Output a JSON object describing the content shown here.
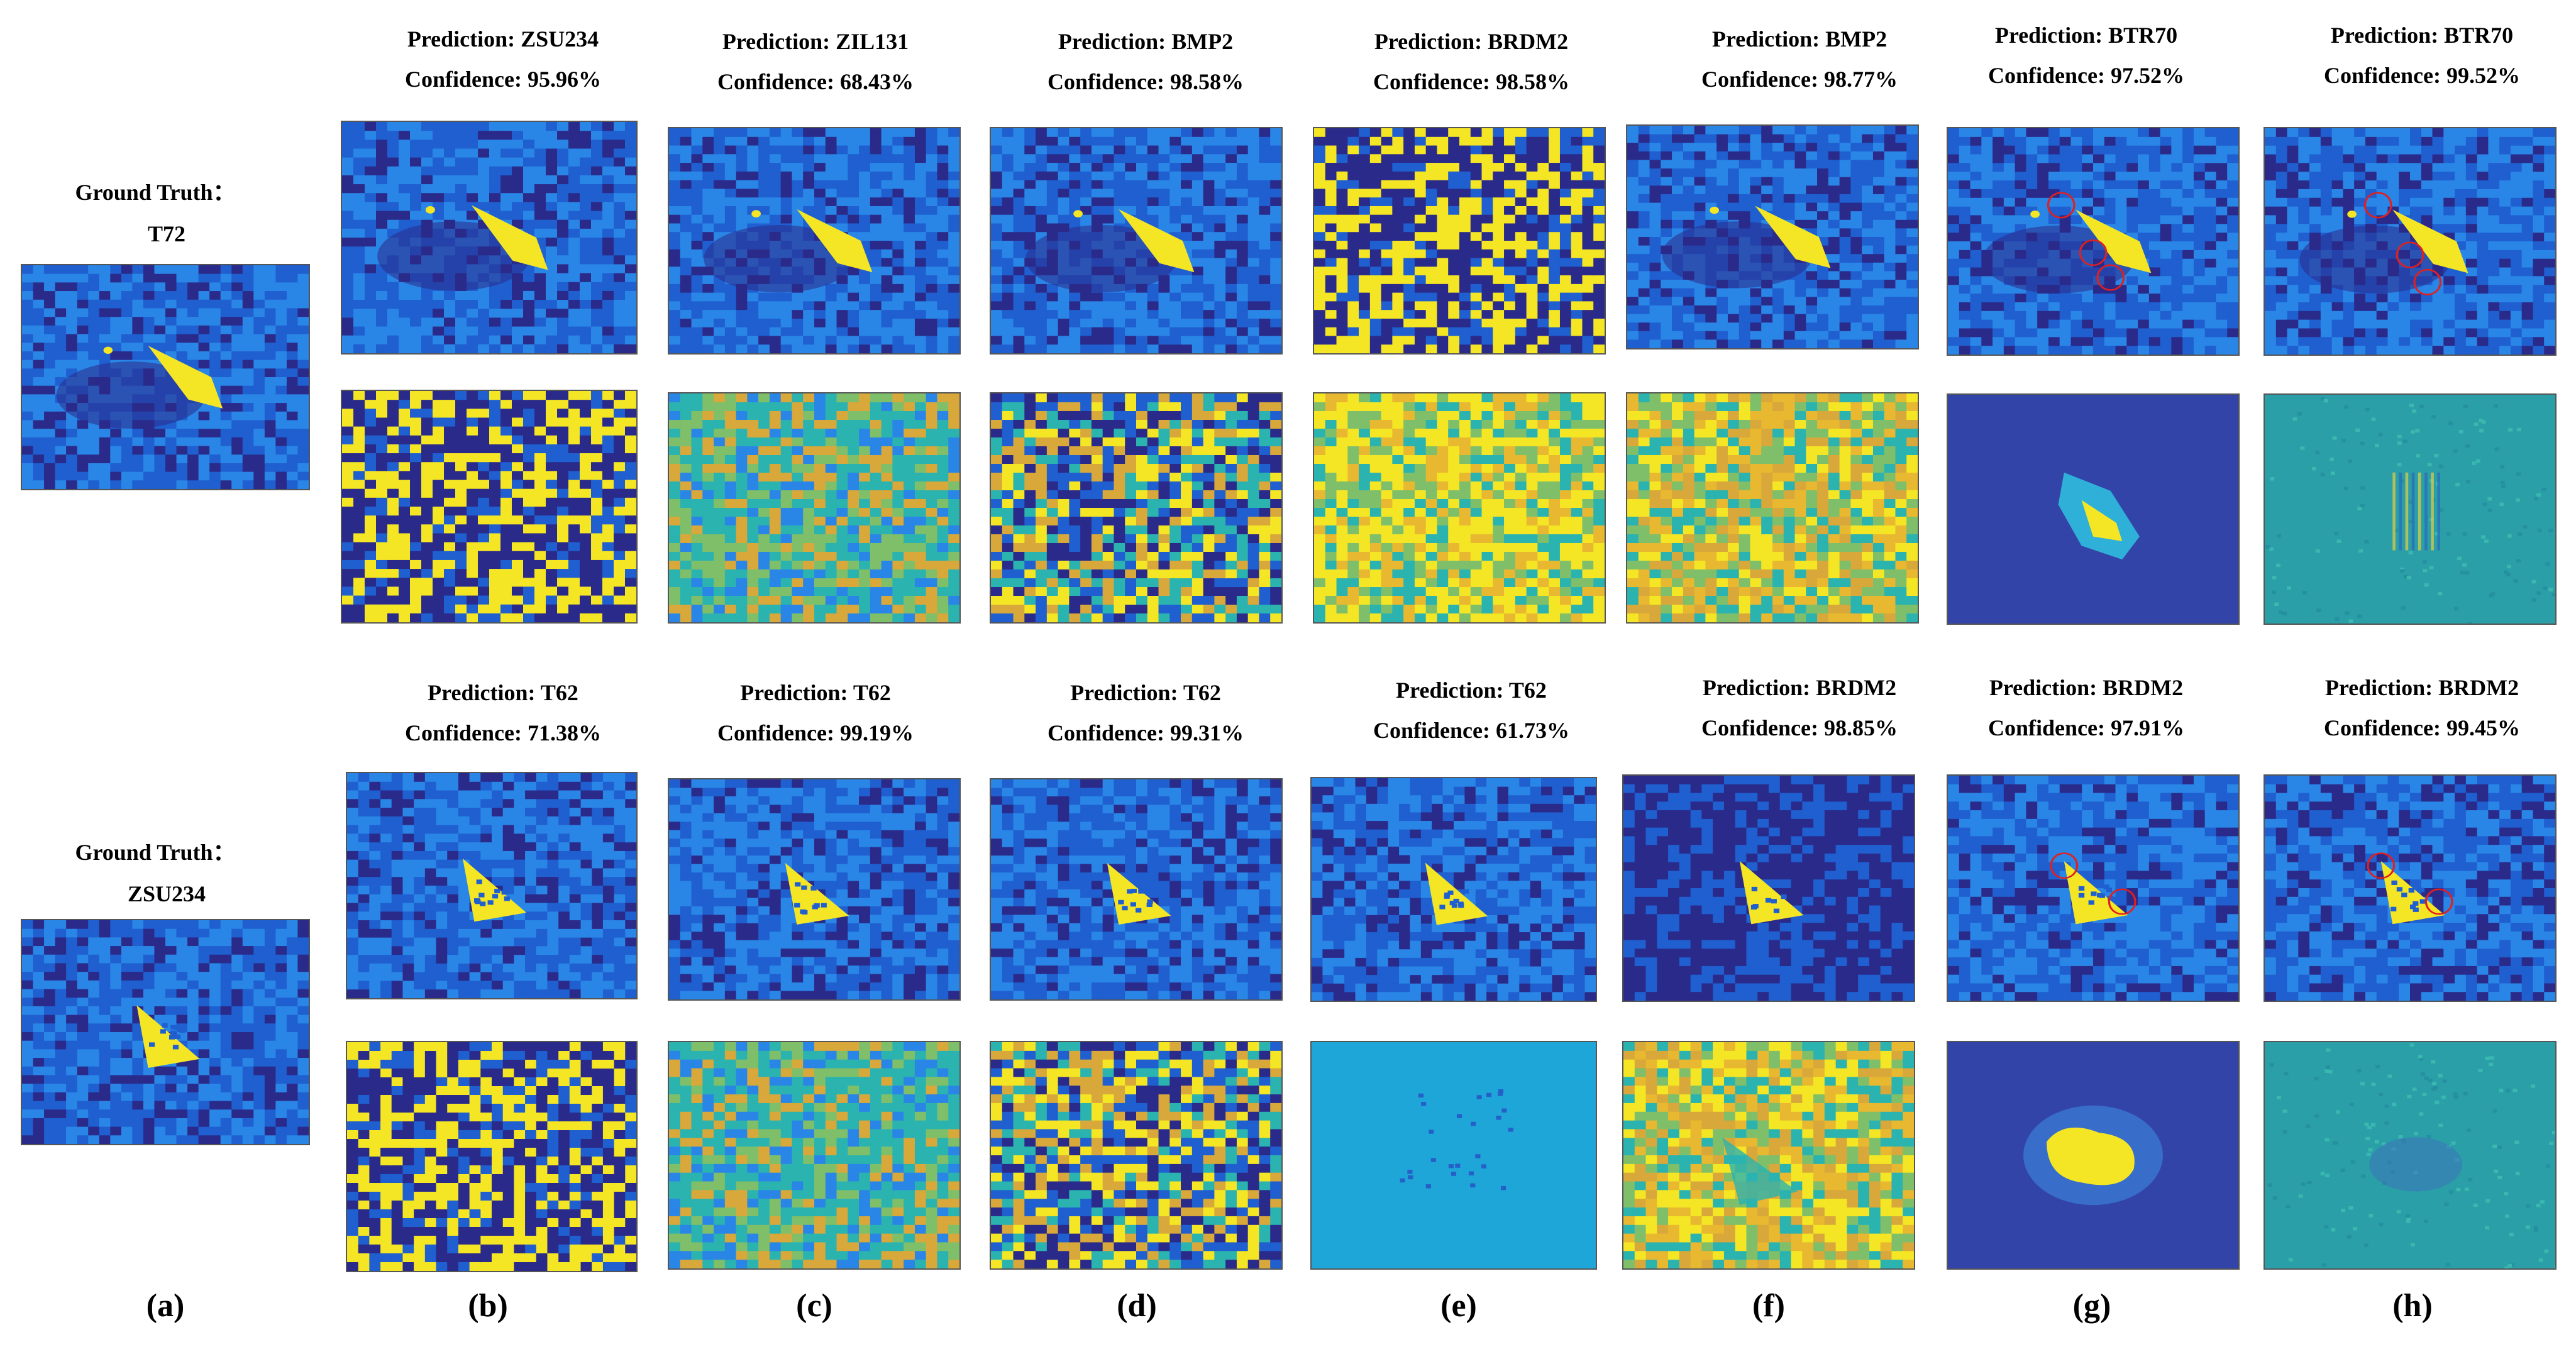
{
  "figure": {
    "rows": [
      {
        "ground_truth": {
          "label": "Ground Truth：",
          "class": "T72"
        },
        "predictions": [
          {
            "column": "b",
            "prediction": "Prediction:  ZSU234",
            "confidence": "Confidence:  95.96%"
          },
          {
            "column": "c",
            "prediction": "Prediction:  ZIL131",
            "confidence": "Confidence:  68.43%"
          },
          {
            "column": "d",
            "prediction": "Prediction:  BMP2",
            "confidence": "Confidence:  98.58%"
          },
          {
            "column": "e",
            "prediction": "Prediction:  BRDM2",
            "confidence": "Confidence:  98.58%"
          },
          {
            "column": "f",
            "prediction": "Prediction:  BMP2",
            "confidence": "Confidence:  98.77%"
          },
          {
            "column": "g",
            "prediction": "Prediction:  BTR70",
            "confidence": "Confidence:  97.52%"
          },
          {
            "column": "h",
            "prediction": "Prediction:  BTR70",
            "confidence": "Confidence:  99.52%"
          }
        ]
      },
      {
        "ground_truth": {
          "label": "Ground Truth：",
          "class": "ZSU234"
        },
        "predictions": [
          {
            "column": "b",
            "prediction": "Prediction:  T62",
            "confidence": "Confidence:  71.38%"
          },
          {
            "column": "c",
            "prediction": "Prediction:  T62",
            "confidence": "Confidence:  99.19%"
          },
          {
            "column": "d",
            "prediction": "Prediction:  T62",
            "confidence": "Confidence:  99.31%"
          },
          {
            "column": "e",
            "prediction": "Prediction:  T62",
            "confidence": "Confidence:  61.73%"
          },
          {
            "column": "f",
            "prediction": "Prediction:  BRDM2",
            "confidence": "Confidence:  98.85%"
          },
          {
            "column": "g",
            "prediction": "Prediction:  BRDM2",
            "confidence": "Confidence:  97.91%"
          },
          {
            "column": "h",
            "prediction": "Prediction:  BRDM2",
            "confidence": "Confidence:  99.45%"
          }
        ]
      }
    ],
    "column_labels": [
      "(a)",
      "(b)",
      "(c)",
      "(d)",
      "(e)",
      "(f)",
      "(g)",
      "(h)"
    ],
    "colors": {
      "dark_navy": "#2a2a8a",
      "blue": "#1f5fd0",
      "bright_blue": "#2a86e6",
      "teal": "#2bb3b0",
      "green": "#7fbf6a",
      "yellow": "#f5e625",
      "marker_red": "#e02020"
    }
  }
}
